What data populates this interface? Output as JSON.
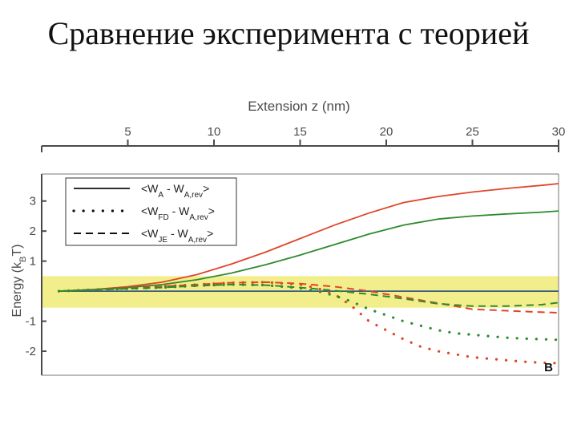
{
  "slide": {
    "title": "Сравнение эксперимента с теорией"
  },
  "chart_data": {
    "type": "line",
    "xlabel": "Extension z (nm)",
    "ylabel": "Energy (kBT)",
    "ylabel_parts": {
      "prefix": "Energy (k",
      "sub": "B",
      "suffix": "T)"
    },
    "xlim": [
      0,
      30
    ],
    "ylim": [
      -2.8,
      3.9
    ],
    "x_ticks": [
      5,
      10,
      15,
      20,
      25,
      30
    ],
    "y_ticks": [
      -2,
      -1,
      1,
      2,
      3
    ],
    "panel_label": "B",
    "highlight_band": {
      "y_range": [
        -0.55,
        0.5
      ],
      "color": "#f3ee8c"
    },
    "legend": [
      {
        "style": "solid",
        "main": "<W",
        "sub1": "A",
        "mid": " - W",
        "sub2": "A,rev",
        "end": ">"
      },
      {
        "style": "dotted",
        "main": "<W",
        "sub1": "FD",
        "mid": " - W",
        "sub2": "A,rev",
        "end": ">"
      },
      {
        "style": "dashed",
        "main": "<W",
        "sub1": "JE",
        "mid": " - W",
        "sub2": "A,rev",
        "end": ">"
      }
    ],
    "colors": {
      "theory": "#3d5a80",
      "red": "#e0452a",
      "green": "#2e8b2e"
    },
    "series": [
      {
        "name": "",
        "style": "solid",
        "color": "#3d5a80",
        "x": [
          1,
          5,
          10,
          15,
          20,
          25,
          30
        ],
        "y": [
          0,
          0,
          0,
          0,
          0,
          0,
          0
        ]
      },
      {
        "name": "",
        "style": "solid",
        "color": "#e0452a",
        "x": [
          1,
          3,
          5,
          7,
          9,
          11,
          13,
          15,
          17,
          19,
          21,
          23,
          25,
          27,
          29,
          30
        ],
        "y": [
          0,
          0.05,
          0.15,
          0.3,
          0.55,
          0.9,
          1.3,
          1.75,
          2.2,
          2.6,
          2.95,
          3.15,
          3.3,
          3.42,
          3.52,
          3.58
        ]
      },
      {
        "name": "",
        "style": "solid",
        "color": "#2e8b2e",
        "x": [
          1,
          3,
          5,
          7,
          9,
          11,
          13,
          15,
          17,
          19,
          21,
          23,
          25,
          27,
          29,
          30
        ],
        "y": [
          0,
          0.05,
          0.12,
          0.22,
          0.38,
          0.6,
          0.88,
          1.2,
          1.55,
          1.9,
          2.2,
          2.4,
          2.5,
          2.57,
          2.63,
          2.67
        ]
      },
      {
        "name": "",
        "style": "dashed",
        "color": "#e0452a",
        "x": [
          1,
          3,
          5,
          7,
          9,
          11,
          13,
          15,
          17,
          19,
          20,
          21,
          23,
          25,
          27,
          29,
          30
        ],
        "y": [
          0,
          0.05,
          0.1,
          0.16,
          0.22,
          0.28,
          0.3,
          0.25,
          0.15,
          0,
          -0.1,
          -0.2,
          -0.4,
          -0.6,
          -0.65,
          -0.7,
          -0.72
        ]
      },
      {
        "name": "",
        "style": "dashed",
        "color": "#2e8b2e",
        "x": [
          1,
          3,
          5,
          7,
          9,
          11,
          13,
          15,
          17,
          19,
          21,
          23,
          25,
          27,
          29,
          30
        ],
        "y": [
          0,
          0.04,
          0.08,
          0.12,
          0.18,
          0.22,
          0.2,
          0.12,
          0.02,
          -0.1,
          -0.25,
          -0.42,
          -0.5,
          -0.5,
          -0.45,
          -0.38
        ]
      },
      {
        "name": "",
        "style": "dotted",
        "color": "#e0452a",
        "x": [
          1,
          3,
          5,
          7,
          9,
          11,
          13,
          15,
          16,
          17,
          18,
          19,
          20,
          21,
          22,
          23,
          24,
          25,
          26,
          27,
          28,
          29,
          30
        ],
        "y": [
          0,
          0.05,
          0.1,
          0.16,
          0.22,
          0.28,
          0.3,
          0.22,
          0.1,
          -0.1,
          -0.5,
          -1.0,
          -1.3,
          -1.6,
          -1.85,
          -2.0,
          -2.1,
          -2.2,
          -2.25,
          -2.3,
          -2.35,
          -2.38,
          -2.4
        ]
      },
      {
        "name": "",
        "style": "dotted",
        "color": "#2e8b2e",
        "x": [
          1,
          3,
          5,
          7,
          9,
          11,
          13,
          15,
          16,
          17,
          18,
          19,
          20,
          21,
          22,
          23,
          24,
          25,
          26,
          27,
          28,
          29,
          30
        ],
        "y": [
          0,
          0.04,
          0.08,
          0.12,
          0.18,
          0.22,
          0.2,
          0.1,
          0.0,
          -0.15,
          -0.35,
          -0.6,
          -0.8,
          -1.0,
          -1.15,
          -1.3,
          -1.4,
          -1.45,
          -1.5,
          -1.55,
          -1.58,
          -1.6,
          -1.62
        ]
      }
    ]
  }
}
